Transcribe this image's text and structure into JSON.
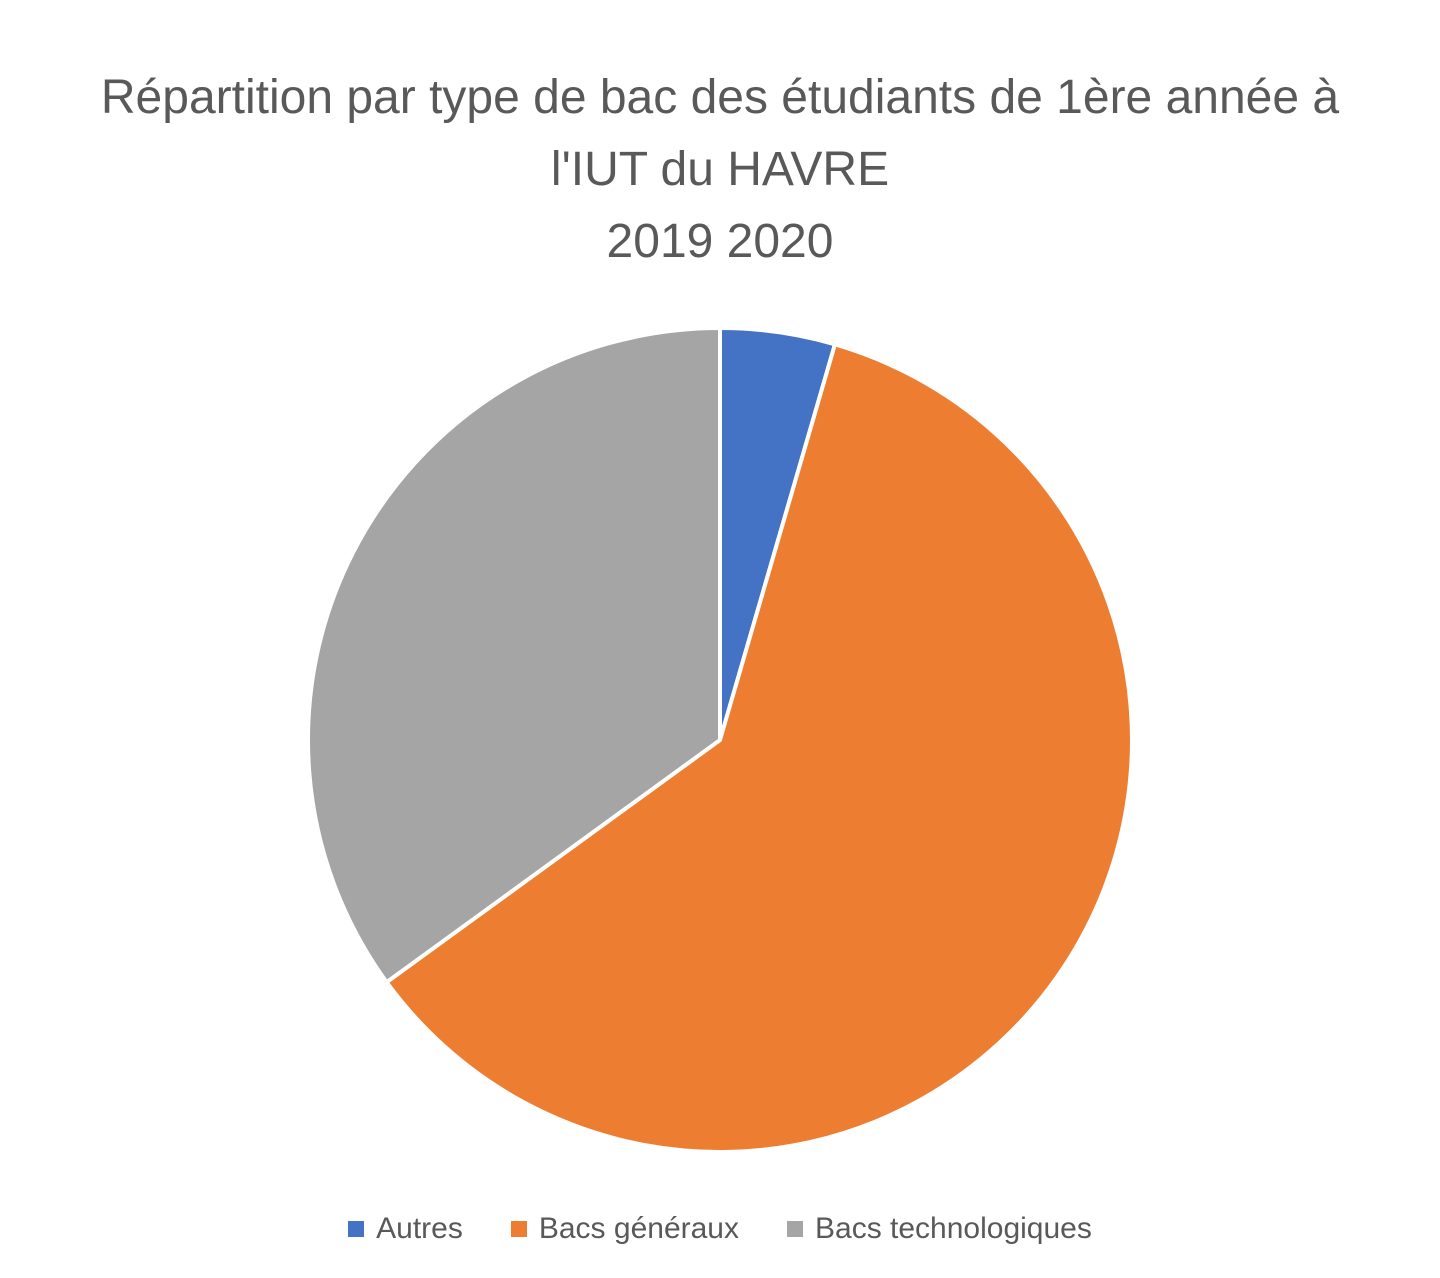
{
  "chart_data": {
    "type": "pie",
    "title_lines": [
      "Répartition par type de bac des étudiants de 1ère année à",
      "l'IUT du HAVRE",
      "2019 2020"
    ],
    "categories": [
      "Autres",
      "Bacs généraux",
      "Bacs technologiques"
    ],
    "values": [
      4.5,
      60.5,
      35.0
    ],
    "colors": [
      "#4472C4",
      "#ED7D31",
      "#A5A5A5"
    ],
    "start_angle_deg": 0,
    "direction": "clockwise",
    "legend_position": "bottom"
  }
}
